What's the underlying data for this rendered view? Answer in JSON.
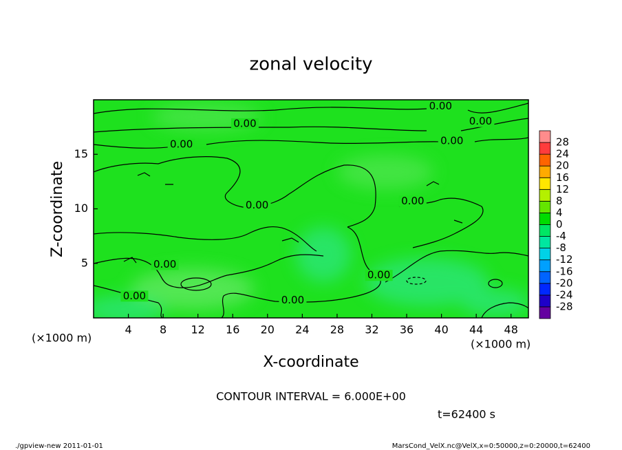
{
  "chart_data": {
    "type": "contour",
    "title": "zonal velocity",
    "x_label": "X-coordinate",
    "y_label": "Z-coordinate",
    "x_unit": "(×1000 m)",
    "y_unit": "(×1000 m)",
    "xlim": [
      0,
      50
    ],
    "xticks": [
      4,
      8,
      12,
      16,
      20,
      24,
      28,
      32,
      36,
      40,
      44,
      48
    ],
    "ylim": [
      0,
      20
    ],
    "yticks": [
      5,
      10,
      15
    ],
    "field_color": "#1ee11e",
    "contour_labels": [
      {
        "x": 39.9,
        "z": 19.4,
        "label": "0.00"
      },
      {
        "x": 17.4,
        "z": 17.8,
        "label": "0.00"
      },
      {
        "x": 44.5,
        "z": 18.0,
        "label": "0.00"
      },
      {
        "x": 10.1,
        "z": 15.9,
        "label": "0.00"
      },
      {
        "x": 41.2,
        "z": 16.2,
        "label": "0.00"
      },
      {
        "x": 18.8,
        "z": 10.3,
        "label": "0.00"
      },
      {
        "x": 36.7,
        "z": 10.7,
        "label": "0.00"
      },
      {
        "x": 8.2,
        "z": 4.9,
        "label": "0.00"
      },
      {
        "x": 32.8,
        "z": 3.9,
        "label": "0.00"
      },
      {
        "x": 4.7,
        "z": 2.0,
        "label": "0.00"
      },
      {
        "x": 22.9,
        "z": 1.6,
        "label": "0.00"
      }
    ],
    "colorbar": {
      "levels": [
        -28,
        -24,
        -20,
        -16,
        -12,
        -8,
        -4,
        0,
        4,
        8,
        12,
        16,
        20,
        24,
        28
      ],
      "colors": [
        "#6400a0",
        "#1e00c8",
        "#0028ff",
        "#0064ff",
        "#00a0ff",
        "#00d2e6",
        "#00e6a0",
        "#00e664",
        "#00dc00",
        "#64e600",
        "#b4f000",
        "#ffe600",
        "#ffaa00",
        "#ff6400",
        "#ff3c3c",
        "#ff8c8c"
      ]
    },
    "contour_interval": "CONTOUR INTERVAL = 6.000E+00",
    "time_label": "t=62400 s",
    "footer_left": "./gpview-new  2011-01-01",
    "footer_right": "MarsCond_VelX.nc@VelX,x=0:50000,z=0:20000,t=62400"
  }
}
